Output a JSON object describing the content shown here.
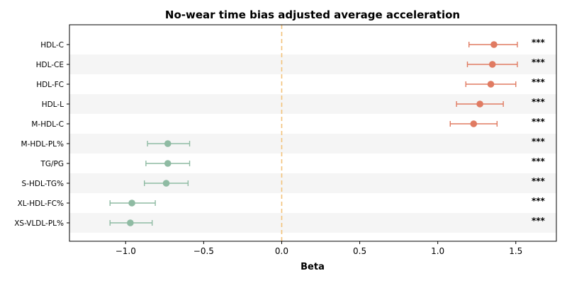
{
  "chart_data": {
    "type": "forest",
    "title": "No-wear time bias adjusted average acceleration",
    "xlabel": "Beta",
    "ylabel": "",
    "xlim": [
      -1.36,
      1.76
    ],
    "xticks": [
      -1.0,
      -0.5,
      0.0,
      0.5,
      1.0,
      1.5
    ],
    "xtick_labels": [
      "−1.0",
      "−0.5",
      "0.0",
      "0.5",
      "1.0",
      "1.5"
    ],
    "reference_line": 0.0,
    "grid": false,
    "rows": [
      {
        "label": "HDL-C",
        "beta": 1.36,
        "ci_low": 1.2,
        "ci_high": 1.51,
        "sig": "***"
      },
      {
        "label": "HDL-CE",
        "beta": 1.35,
        "ci_low": 1.19,
        "ci_high": 1.51,
        "sig": "***"
      },
      {
        "label": "HDL-FC",
        "beta": 1.34,
        "ci_low": 1.18,
        "ci_high": 1.5,
        "sig": "***"
      },
      {
        "label": "HDL-L",
        "beta": 1.27,
        "ci_low": 1.12,
        "ci_high": 1.42,
        "sig": "***"
      },
      {
        "label": "M-HDL-C",
        "beta": 1.23,
        "ci_low": 1.08,
        "ci_high": 1.38,
        "sig": "***"
      },
      {
        "label": "M-HDL-PL%",
        "beta": -0.73,
        "ci_low": -0.86,
        "ci_high": -0.59,
        "sig": "***"
      },
      {
        "label": "TG/PG",
        "beta": -0.73,
        "ci_low": -0.87,
        "ci_high": -0.59,
        "sig": "***"
      },
      {
        "label": "S-HDL-TG%",
        "beta": -0.74,
        "ci_low": -0.88,
        "ci_high": -0.6,
        "sig": "***"
      },
      {
        "label": "XL-HDL-FC%",
        "beta": -0.96,
        "ci_low": -1.1,
        "ci_high": -0.81,
        "sig": "***"
      },
      {
        "label": "XS-VLDL-PL%",
        "beta": -0.97,
        "ci_low": -1.1,
        "ci_high": -0.83,
        "sig": "***"
      }
    ],
    "colors": {
      "positive": "#e07b62",
      "negative": "#8fbba3",
      "reference_line": "#f3c27a",
      "band": "#f5f5f5"
    }
  }
}
